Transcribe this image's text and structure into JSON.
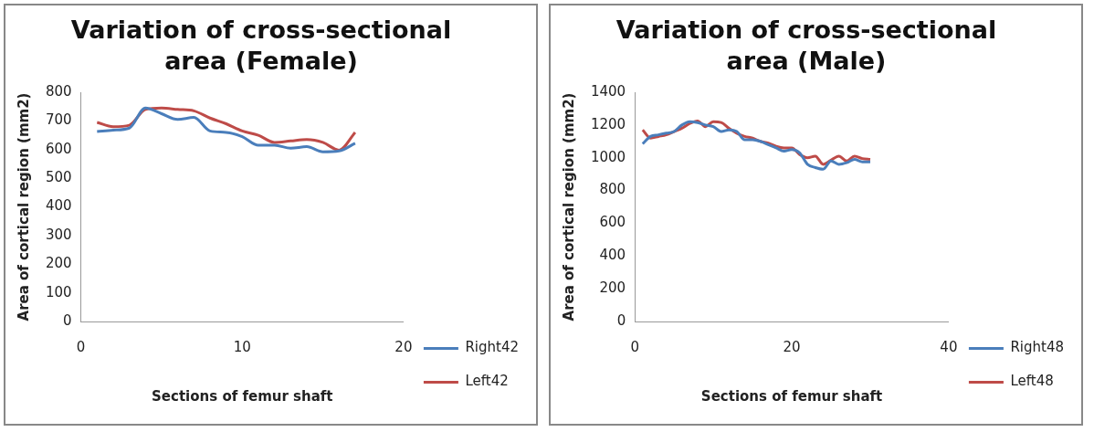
{
  "chart_data": [
    {
      "type": "line",
      "title": "Variation of cross-sectional area (Female)",
      "xlabel": "Sections of femur shaft",
      "ylabel": "Area of cortical region (mm2)",
      "x": [
        1,
        2,
        3,
        4,
        5,
        6,
        7,
        8,
        9,
        10,
        11,
        12,
        13,
        14,
        15,
        16,
        17
      ],
      "xlim": [
        0,
        20
      ],
      "xticks": [
        0,
        10,
        20
      ],
      "ylim": [
        0,
        800
      ],
      "yticks": [
        0,
        100,
        200,
        300,
        400,
        500,
        600,
        700,
        800
      ],
      "grid": false,
      "legend": "right",
      "marker": "none",
      "series": [
        {
          "name": "Right42",
          "color": "#4a7ebb",
          "values": [
            663,
            668,
            675,
            745,
            725,
            705,
            712,
            665,
            660,
            645,
            615,
            615,
            605,
            610,
            592,
            595,
            622
          ]
        },
        {
          "name": "Left42",
          "color": "#be4b48",
          "values": [
            695,
            680,
            685,
            740,
            745,
            740,
            735,
            710,
            690,
            665,
            650,
            625,
            630,
            635,
            625,
            598,
            660
          ]
        }
      ]
    },
    {
      "type": "line",
      "title": "Variation of cross-sectional area (Male)",
      "xlabel": "Sections of femur shaft",
      "ylabel": "Area of cortical region (mm2)",
      "x": [
        1,
        2,
        3,
        4,
        5,
        6,
        7,
        8,
        9,
        10,
        11,
        12,
        13,
        14,
        15,
        16,
        17,
        18,
        19,
        20,
        21,
        22,
        23,
        24,
        25,
        26,
        27,
        28,
        29,
        30
      ],
      "xlim": [
        0,
        40
      ],
      "xticks": [
        0,
        20,
        40
      ],
      "ylim": [
        0,
        1400
      ],
      "yticks": [
        0,
        200,
        400,
        600,
        800,
        1000,
        1200,
        1400
      ],
      "grid": false,
      "legend": "right",
      "marker": "none",
      "series": [
        {
          "name": "Right48",
          "color": "#4a7ebb",
          "values": [
            1085,
            1130,
            1140,
            1150,
            1160,
            1200,
            1220,
            1215,
            1200,
            1190,
            1160,
            1170,
            1160,
            1110,
            1110,
            1100,
            1080,
            1060,
            1040,
            1050,
            1030,
            960,
            940,
            930,
            980,
            960,
            970,
            990,
            975,
            975
          ]
        },
        {
          "name": "Left48",
          "color": "#be4b48",
          "values": [
            1170,
            1120,
            1130,
            1140,
            1160,
            1180,
            1210,
            1225,
            1190,
            1220,
            1215,
            1180,
            1150,
            1130,
            1120,
            1100,
            1090,
            1070,
            1060,
            1060,
            1020,
            1000,
            1010,
            960,
            985,
            1010,
            980,
            1010,
            995,
            990
          ]
        }
      ]
    }
  ]
}
